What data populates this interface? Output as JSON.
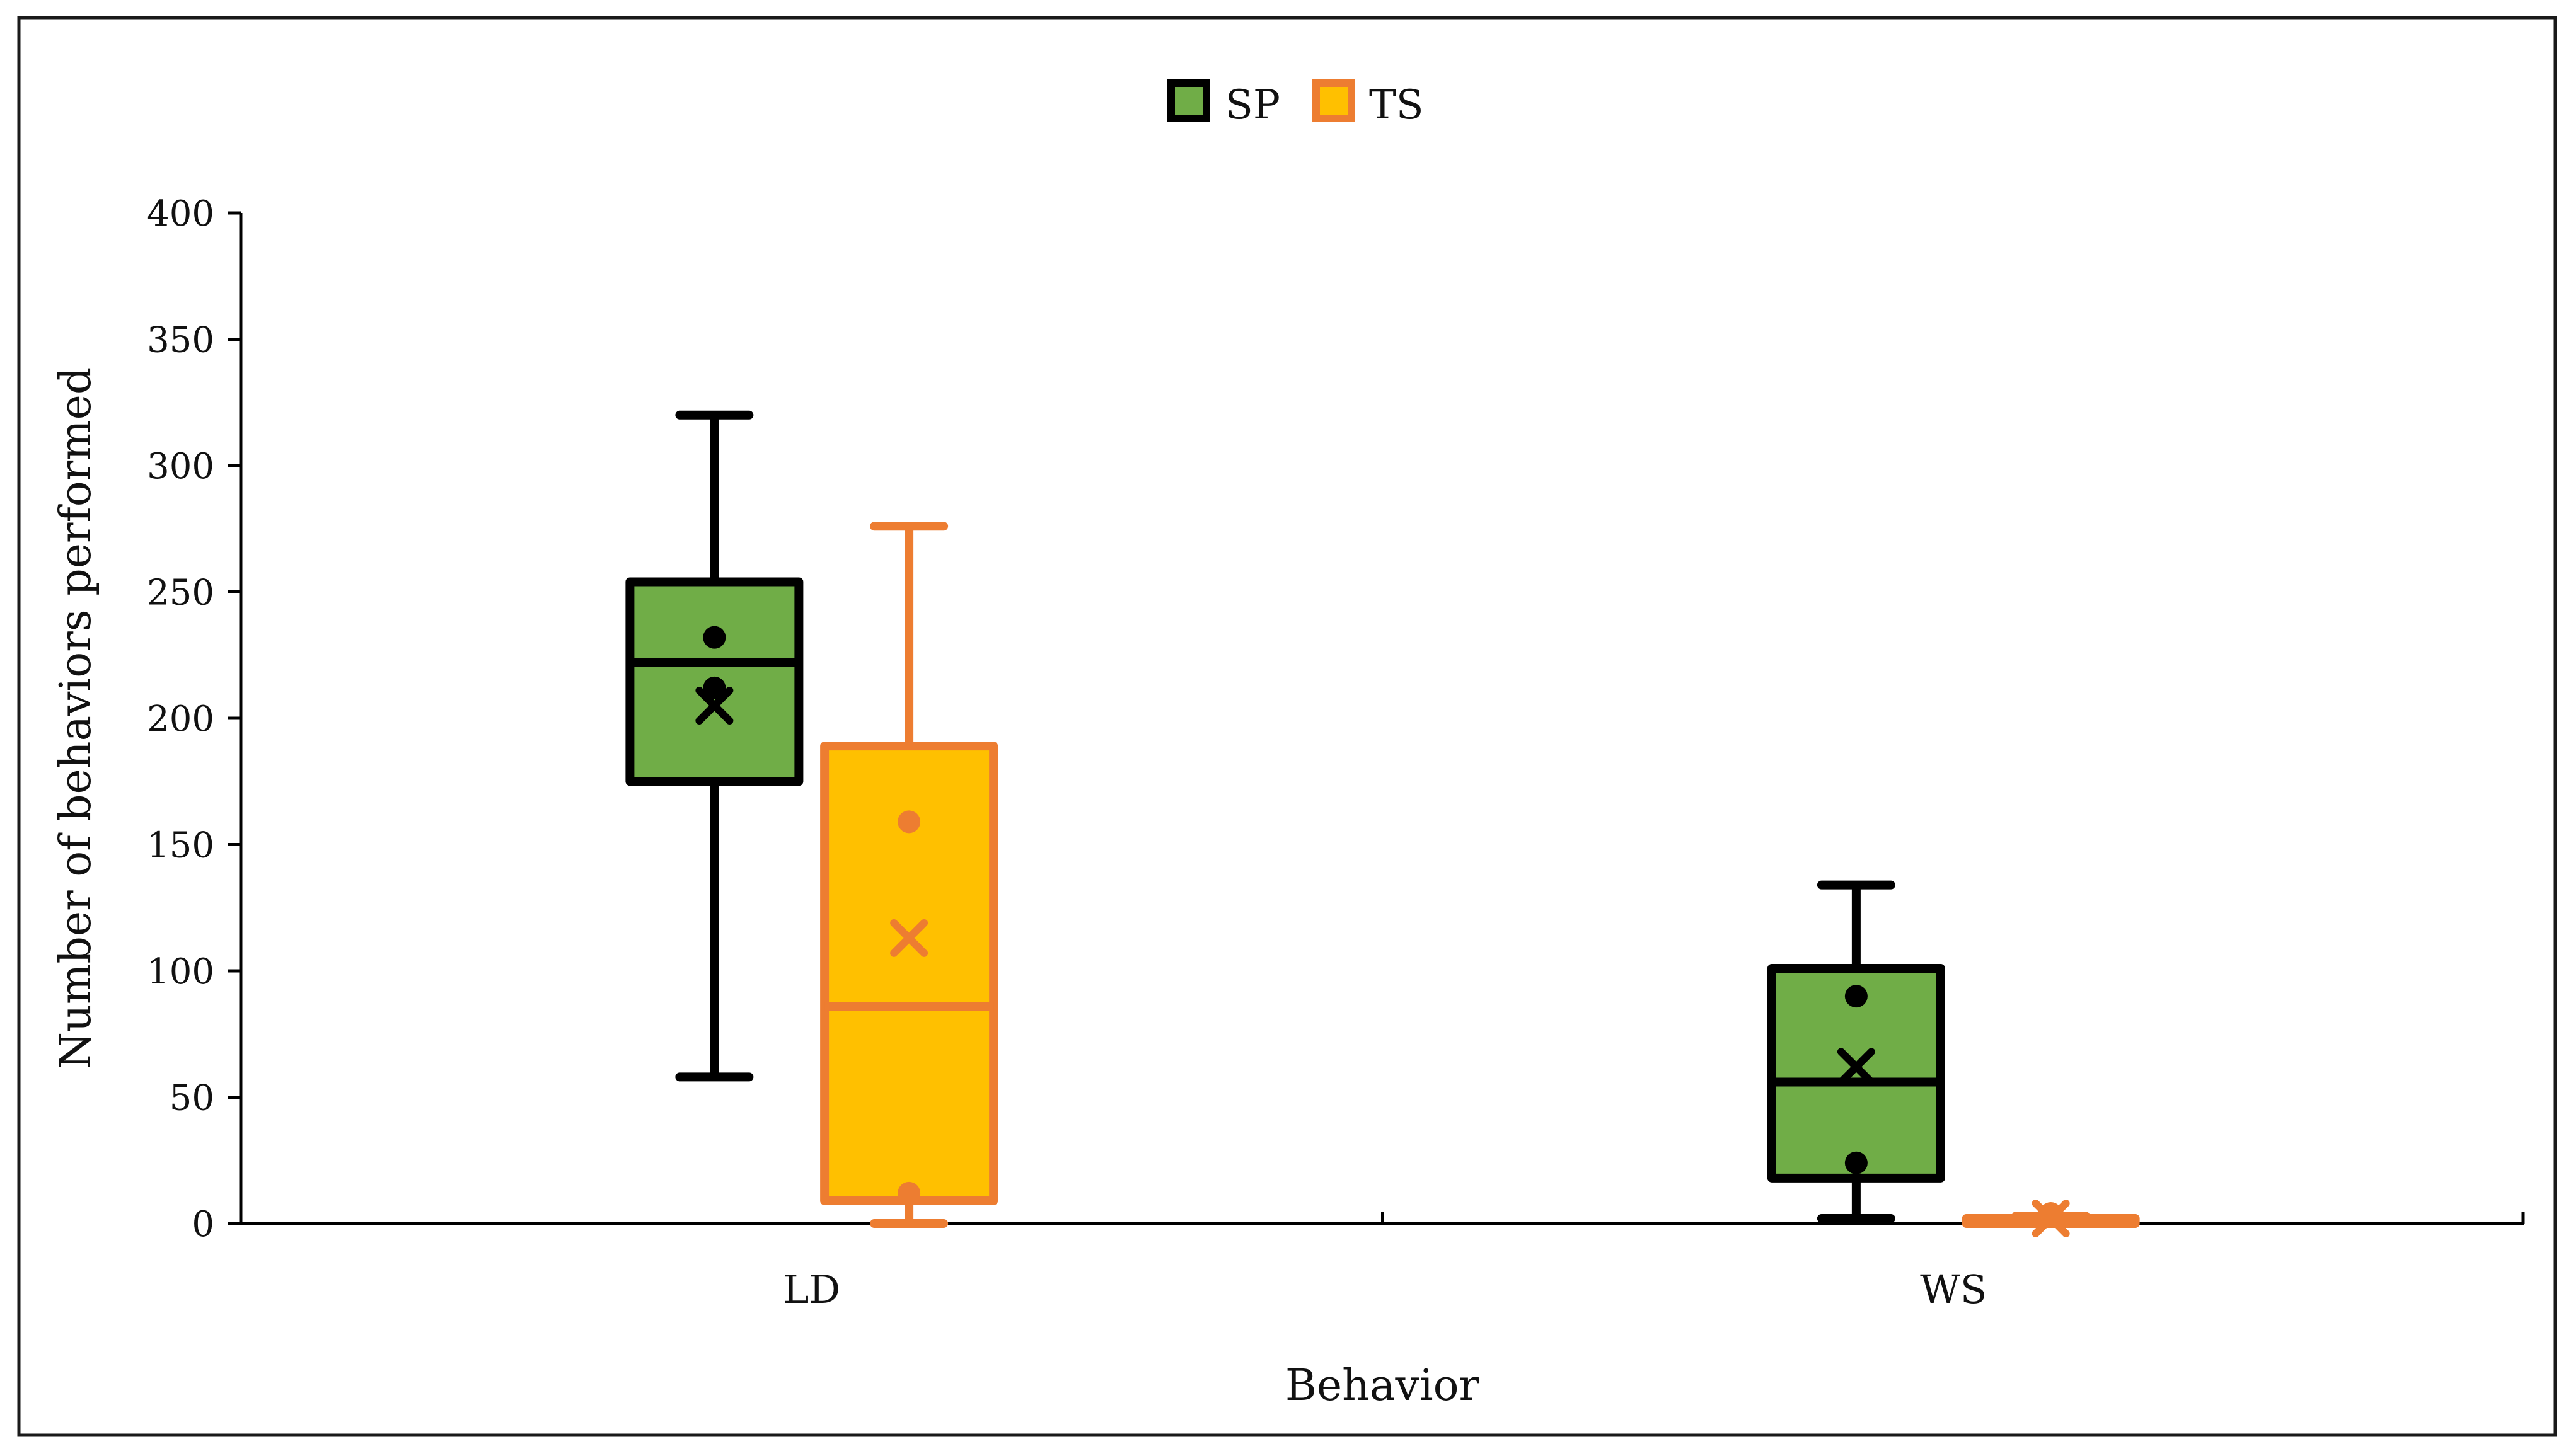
{
  "chart_data": {
    "type": "box",
    "title": "",
    "xlabel": "Behavior",
    "ylabel": "Number of behaviors performed",
    "ylim": [
      0,
      400
    ],
    "yticks": [
      0,
      50,
      100,
      150,
      200,
      250,
      300,
      350,
      400
    ],
    "ytick_labels": [
      "0",
      "50",
      "100",
      "150",
      "200",
      "250",
      "300",
      "350",
      "400"
    ],
    "categories": [
      "LD",
      "WS"
    ],
    "legend_position": "top-center",
    "series": [
      {
        "name": "SP",
        "fill": "#70ad47",
        "stroke": "#000000",
        "boxes": [
          {
            "category": "LD",
            "min": 58,
            "q1": 175,
            "median": 222,
            "q3": 254,
            "max": 320,
            "mean": 205,
            "points": [
              232,
              212
            ]
          },
          {
            "category": "WS",
            "min": 2,
            "q1": 18,
            "median": 56,
            "q3": 101,
            "max": 134,
            "mean": 62,
            "points": [
              90,
              24
            ]
          }
        ]
      },
      {
        "name": "TS",
        "fill": "#ffc000",
        "stroke": "#ed7d31",
        "boxes": [
          {
            "category": "LD",
            "min": 0,
            "q1": 9,
            "median": 86,
            "q3": 189,
            "max": 276,
            "mean": 113,
            "points": [
              159,
              12
            ]
          },
          {
            "category": "WS",
            "min": 0,
            "q1": 0,
            "median": 1,
            "q3": 2,
            "max": 3,
            "mean": 2,
            "points": [
              4
            ]
          }
        ]
      }
    ]
  }
}
